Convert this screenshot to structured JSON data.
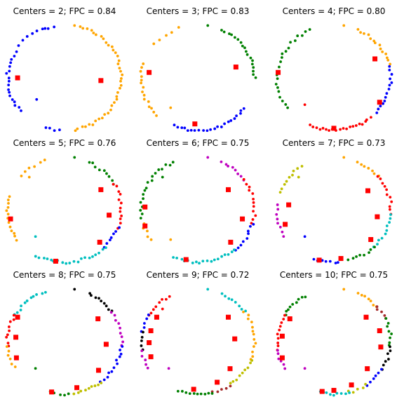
{
  "colors": {
    "blue": "#0000ff",
    "orange": "#ffa500",
    "green": "#008000",
    "red": "#ff0000",
    "cyan": "#00bfbf",
    "magenta": "#bf00bf",
    "yellow": "#bfbf00",
    "black": "#000000",
    "brown": "#a52a2a",
    "center": "#ff0000"
  },
  "chart_data": [
    {
      "type": "scatter",
      "title": "Centers = 2; FPC = 0.84",
      "xlim": [
        -1.1,
        1.1
      ],
      "ylim": [
        -1.1,
        1.1
      ],
      "clusters": [
        {
          "color": "orange",
          "arcs": [
            [
              -80,
              75,
              40
            ]
          ],
          "isolated": [
            [
              80,
              0.98
            ]
          ]
        },
        {
          "color": "blue",
          "arcs": [
            [
              100,
              155,
              10
            ],
            [
              160,
              220,
              16
            ],
            [
              250,
              265,
              4
            ]
          ],
          "isolated": [
            [
              110,
              0.97
            ],
            [
              220,
              0.62
            ]
          ]
        }
      ],
      "centers": [
        [
          -0.8,
          0.0
        ],
        [
          0.62,
          -0.05
        ]
      ]
    },
    {
      "type": "scatter",
      "title": "Centers = 3; FPC = 0.83",
      "xlim": [
        -1.1,
        1.1
      ],
      "ylim": [
        -1.1,
        1.1
      ],
      "clusters": [
        {
          "color": "orange",
          "arcs": [
            [
              110,
              140,
              5
            ],
            [
              165,
              225,
              15
            ]
          ],
          "isolated": [
            [
              230,
              0.72
            ]
          ]
        },
        {
          "color": "green",
          "arcs": [
            [
              0,
              65,
              18
            ]
          ],
          "isolated": [
            [
              80,
              0.98
            ]
          ]
        },
        {
          "color": "blue",
          "arcs": [
            [
              245,
              325,
              22
            ]
          ],
          "isolated": []
        }
      ],
      "centers": [
        [
          -0.83,
          0.1
        ],
        [
          0.65,
          0.2
        ],
        [
          -0.05,
          -0.85
        ]
      ]
    },
    {
      "type": "scatter",
      "title": "Centers = 4; FPC = 0.80",
      "xlim": [
        -1.1,
        1.1
      ],
      "ylim": [
        -1.1,
        1.1
      ],
      "clusters": [
        {
          "color": "green",
          "arcs": [
            [
              115,
              215,
              22
            ]
          ],
          "isolated": []
        },
        {
          "color": "orange",
          "arcs": [
            [
              15,
              65,
              14
            ]
          ],
          "isolated": [
            [
              80,
              0.98
            ]
          ]
        },
        {
          "color": "blue",
          "arcs": [
            [
              -42,
              12,
              14
            ]
          ],
          "isolated": []
        },
        {
          "color": "red",
          "arcs": [
            [
              245,
              310,
              20
            ]
          ],
          "isolated": [
            [
              225,
              0.7
            ]
          ]
        }
      ],
      "centers": [
        [
          0.7,
          0.35
        ],
        [
          -0.95,
          0.1
        ],
        [
          0.78,
          -0.45
        ],
        [
          0.0,
          -0.93
        ]
      ]
    },
    {
      "type": "scatter",
      "title": "Centers = 5; FPC = 0.76",
      "xlim": [
        -1.1,
        1.1
      ],
      "ylim": [
        -1.1,
        1.1
      ],
      "clusters": [
        {
          "color": "orange",
          "arcs": [
            [
              110,
              140,
              6
            ],
            [
              165,
              215,
              13
            ]
          ],
          "isolated": [
            [
              135,
              0.85
            ]
          ]
        },
        {
          "color": "green",
          "arcs": [
            [
              30,
              65,
              9
            ]
          ],
          "isolated": [
            [
              80,
              0.98
            ]
          ]
        },
        {
          "color": "red",
          "arcs": [
            [
              -20,
              30,
              12
            ]
          ],
          "isolated": []
        },
        {
          "color": "blue",
          "arcs": [
            [
              -45,
              -20,
              7
            ]
          ],
          "isolated": []
        },
        {
          "color": "cyan",
          "arcs": [
            [
              240,
              315,
              20
            ]
          ],
          "isolated": [
            [
              225,
              0.7
            ]
          ]
        }
      ],
      "centers": [
        [
          0.62,
          0.37
        ],
        [
          -0.92,
          -0.17
        ],
        [
          0.76,
          -0.1
        ],
        [
          0.6,
          -0.6
        ],
        [
          -0.15,
          -0.95
        ]
      ]
    },
    {
      "type": "scatter",
      "title": "Centers = 6; FPC = 0.75",
      "xlim": [
        -1.1,
        1.1
      ],
      "ylim": [
        -1.1,
        1.1
      ],
      "clusters": [
        {
          "color": "green",
          "arcs": [
            [
              115,
              190,
              18
            ]
          ],
          "isolated": [
            [
              135,
              0.85
            ]
          ]
        },
        {
          "color": "orange",
          "arcs": [
            [
              195,
              215,
              5
            ]
          ],
          "isolated": [
            [
              230,
              0.72
            ]
          ]
        },
        {
          "color": "magenta",
          "arcs": [
            [
              35,
              65,
              8
            ]
          ],
          "isolated": [
            [
              80,
              0.98
            ]
          ]
        },
        {
          "color": "red",
          "arcs": [
            [
              -15,
              35,
              12
            ]
          ],
          "isolated": []
        },
        {
          "color": "blue",
          "arcs": [
            [
              -50,
              -15,
              9
            ]
          ],
          "isolated": []
        },
        {
          "color": "cyan",
          "arcs": [
            [
              245,
              310,
              18
            ]
          ],
          "isolated": []
        }
      ],
      "centers": [
        [
          -0.9,
          0.05
        ],
        [
          0.52,
          0.37
        ],
        [
          0.76,
          -0.17
        ],
        [
          -0.9,
          -0.3
        ],
        [
          0.56,
          -0.6
        ],
        [
          -0.2,
          -0.92
        ]
      ]
    },
    {
      "type": "scatter",
      "title": "Centers = 7; FPC = 0.73",
      "xlim": [
        -1.1,
        1.1
      ],
      "ylim": [
        -1.1,
        1.1
      ],
      "clusters": [
        {
          "color": "yellow",
          "arcs": [
            [
              125,
              160,
              9
            ]
          ],
          "isolated": [
            [
              135,
              0.85
            ]
          ]
        },
        {
          "color": "magenta",
          "arcs": [
            [
              175,
              210,
              8
            ]
          ],
          "isolated": []
        },
        {
          "color": "orange",
          "arcs": [
            [
              40,
              65,
              7
            ]
          ],
          "isolated": [
            [
              80,
              0.98
            ]
          ]
        },
        {
          "color": "red",
          "arcs": [
            [
              -5,
              40,
              11
            ]
          ],
          "isolated": []
        },
        {
          "color": "cyan",
          "arcs": [
            [
              -45,
              -5,
              10
            ]
          ],
          "isolated": []
        },
        {
          "color": "green",
          "arcs": [
            [
              -75,
              -45,
              8
            ]
          ],
          "isolated": []
        },
        {
          "color": "blue",
          "arcs": [
            [
              250,
              275,
              7
            ]
          ],
          "isolated": [
            [
              225,
              0.7
            ]
          ]
        }
      ],
      "centers": [
        [
          -0.77,
          0.09
        ],
        [
          0.58,
          0.35
        ],
        [
          0.74,
          -0.13
        ],
        [
          -0.83,
          -0.27
        ],
        [
          0.63,
          -0.55
        ],
        [
          0.12,
          -0.9
        ],
        [
          -0.25,
          -0.93
        ]
      ]
    },
    {
      "type": "scatter",
      "title": "Centers = 8; FPC = 0.75",
      "xlim": [
        -1.1,
        1.1
      ],
      "ylim": [
        -1.1,
        1.1
      ],
      "clusters": [
        {
          "color": "cyan",
          "arcs": [
            [
              110,
              150,
              11
            ]
          ],
          "isolated": []
        },
        {
          "color": "red",
          "arcs": [
            [
              150,
              185,
              9
            ]
          ],
          "isolated": []
        },
        {
          "color": "orange",
          "arcs": [
            [
              185,
              210,
              6
            ]
          ],
          "isolated": []
        },
        {
          "color": "black",
          "arcs": [
            [
              35,
              65,
              9
            ]
          ],
          "isolated": [
            [
              80,
              0.98
            ]
          ]
        },
        {
          "color": "magenta",
          "arcs": [
            [
              -5,
              35,
              9
            ]
          ],
          "isolated": []
        },
        {
          "color": "blue",
          "arcs": [
            [
              -50,
              -5,
              12
            ]
          ],
          "isolated": []
        },
        {
          "color": "yellow",
          "arcs": [
            [
              -80,
              -50,
              9
            ]
          ],
          "isolated": []
        },
        {
          "color": "green",
          "arcs": [
            [
              255,
              275,
              5
            ]
          ],
          "isolated": [
            [
              225,
              0.7
            ]
          ]
        }
      ],
      "centers": [
        [
          -0.8,
          0.45
        ],
        [
          0.57,
          0.42
        ],
        [
          -0.83,
          0.08
        ],
        [
          0.71,
          -0.05
        ],
        [
          -0.82,
          -0.3
        ],
        [
          0.58,
          -0.53
        ],
        [
          0.21,
          -0.85
        ],
        [
          -0.22,
          -0.93
        ]
      ]
    },
    {
      "type": "scatter",
      "title": "Centers = 9; FPC = 0.72",
      "xlim": [
        -1.1,
        1.1
      ],
      "ylim": [
        -1.1,
        1.1
      ],
      "clusters": [
        {
          "color": "red",
          "arcs": [
            [
              120,
              150,
              8
            ]
          ],
          "isolated": [
            [
              135,
              0.85
            ]
          ]
        },
        {
          "color": "blue",
          "arcs": [
            [
              150,
              170,
              5
            ]
          ],
          "isolated": []
        },
        {
          "color": "black",
          "arcs": [
            [
              170,
              190,
              5
            ]
          ],
          "isolated": []
        },
        {
          "color": "magenta",
          "arcs": [
            [
              190,
              210,
              5
            ]
          ],
          "isolated": [
            [
              225,
              0.7
            ]
          ]
        },
        {
          "color": "cyan",
          "arcs": [
            [
              35,
              65,
              8
            ]
          ],
          "isolated": [
            [
              80,
              0.98
            ]
          ]
        },
        {
          "color": "orange",
          "arcs": [
            [
              -20,
              35,
              13
            ]
          ],
          "isolated": []
        },
        {
          "color": "yellow",
          "arcs": [
            [
              -55,
              -20,
              9
            ]
          ],
          "isolated": []
        },
        {
          "color": "brown",
          "arcs": [
            [
              -75,
              -55,
              5
            ]
          ],
          "isolated": []
        },
        {
          "color": "green",
          "arcs": [
            [
              250,
              285,
              10
            ]
          ],
          "isolated": []
        }
      ],
      "centers": [
        [
          -0.7,
          0.45
        ],
        [
          -0.8,
          0.2
        ],
        [
          0.52,
          0.45
        ],
        [
          0.63,
          0.05
        ],
        [
          -0.83,
          -0.02
        ],
        [
          -0.8,
          -0.28
        ],
        [
          0.55,
          -0.5
        ],
        [
          0.33,
          -0.75
        ],
        [
          -0.07,
          -0.88
        ]
      ]
    },
    {
      "type": "scatter",
      "title": "Centers = 10; FPC = 0.75",
      "xlim": [
        -1.1,
        1.1
      ],
      "ylim": [
        -1.1,
        1.1
      ],
      "clusters": [
        {
          "color": "green",
          "arcs": [
            [
              120,
              150,
              9
            ]
          ],
          "isolated": []
        },
        {
          "color": "red",
          "arcs": [
            [
              150,
              190,
              10
            ]
          ],
          "isolated": []
        },
        {
          "color": "magenta",
          "arcs": [
            [
              190,
              210,
              6
            ]
          ],
          "isolated": [
            [
              225,
              0.7
            ]
          ]
        },
        {
          "color": "orange",
          "arcs": [
            [
              42,
              65,
              7
            ]
          ],
          "isolated": [
            [
              80,
              0.98
            ]
          ]
        },
        {
          "color": "brown",
          "arcs": [
            [
              25,
              42,
              5
            ]
          ],
          "isolated": []
        },
        {
          "color": "green",
          "arcs": [
            [
              -5,
              25,
              8
            ]
          ],
          "isolated": []
        },
        {
          "color": "black",
          "arcs": [
            [
              -32,
              -5,
              7
            ]
          ],
          "isolated": []
        },
        {
          "color": "blue",
          "arcs": [
            [
              -55,
              -32,
              6
            ]
          ],
          "isolated": []
        },
        {
          "color": "yellow",
          "arcs": [
            [
              -75,
              -55,
              5
            ]
          ],
          "isolated": []
        },
        {
          "color": "cyan",
          "arcs": [
            [
              255,
              285,
              9
            ]
          ],
          "isolated": []
        }
      ],
      "centers": [
        [
          -0.75,
          0.42
        ],
        [
          0.55,
          0.45
        ],
        [
          -0.88,
          0.1
        ],
        [
          0.78,
          0.2
        ],
        [
          0.8,
          -0.1
        ],
        [
          -0.88,
          -0.3
        ],
        [
          0.57,
          -0.5
        ],
        [
          0.3,
          -0.8
        ],
        [
          0.0,
          -0.9
        ],
        [
          -0.2,
          -0.92
        ]
      ]
    }
  ]
}
